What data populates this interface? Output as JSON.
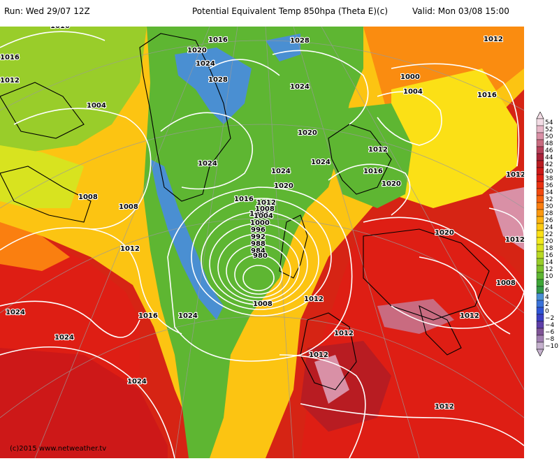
{
  "header": {
    "run": "Run: Wed 29/07 12Z",
    "title": "Potential Equivalent Temp 850hpa (Theta E)(c)",
    "valid": "Valid: Mon 03/08 15:00"
  },
  "credit": "(c)2015  www.netweather.tv",
  "isobar_labels": [
    "1016",
    "1016",
    "1016",
    "1016",
    "1016",
    "1016",
    "1016",
    "1020",
    "1020",
    "1020",
    "1020",
    "1020",
    "1024",
    "1024",
    "1024",
    "1024",
    "1024",
    "1024",
    "1024",
    "1024",
    "1024",
    "1028",
    "1028",
    "1000",
    "1004",
    "1004",
    "1004",
    "1008",
    "1008",
    "1008",
    "1008",
    "1012",
    "1012",
    "1012",
    "1012",
    "1012",
    "1012",
    "1012",
    "1012",
    "1012",
    "1012",
    "1012",
    "1012",
    "1008",
    "1004",
    "1000",
    "996",
    "992",
    "988",
    "984",
    "980"
  ],
  "legend": {
    "ticks": [
      "54",
      "52",
      "50",
      "48",
      "46",
      "44",
      "42",
      "40",
      "38",
      "36",
      "34",
      "32",
      "30",
      "28",
      "26",
      "24",
      "22",
      "20",
      "18",
      "16",
      "14",
      "12",
      "10",
      "8",
      "6",
      "4",
      "2",
      "0",
      "−2",
      "−4",
      "−6",
      "−8",
      "−10"
    ],
    "colors": [
      "#f3dce5",
      "#e7b8c8",
      "#d990a6",
      "#c96b80",
      "#b5405a",
      "#a8223a",
      "#b81c22",
      "#cd1818",
      "#de1e14",
      "#ea3212",
      "#f24a10",
      "#f7640f",
      "#fa7f10",
      "#fb9910",
      "#fcb311",
      "#fccb12",
      "#fbe016",
      "#f2ea1e",
      "#d8e31f",
      "#b9d924",
      "#99cd2a",
      "#7cc22d",
      "#5eb632",
      "#3ea738",
      "#339949",
      "#4a8fd2",
      "#3a72d9",
      "#2f55d6",
      "#3b3fc4",
      "#5e3ea8",
      "#7f5496",
      "#a07fb0",
      "#c4b0cc"
    ]
  }
}
